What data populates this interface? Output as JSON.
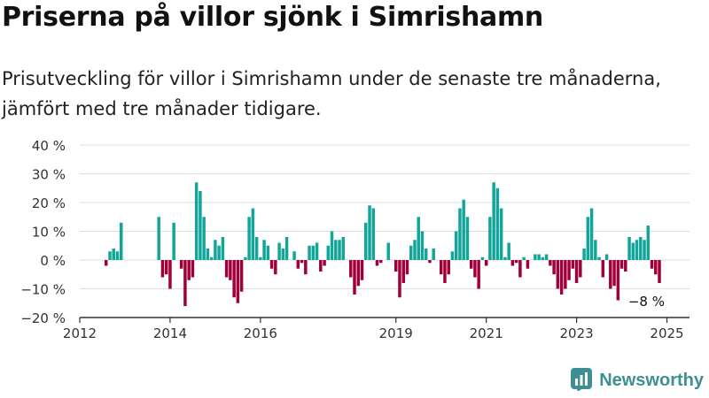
{
  "header": {
    "title": "Priserna på villor sjönk i Simrishamn",
    "subtitle": "Prisutveckling för villor i Simrishamn under de senaste tre månaderna, jämfört med tre månader tidigare."
  },
  "brand": {
    "name": "Newsworthy",
    "icon": "newsworthy-logo-icon"
  },
  "colors": {
    "positive": "#14a59a",
    "negative": "#a0003a",
    "grid": "#dddddd",
    "axis": "#333333",
    "brand": "#3d8f92"
  },
  "chart_data": {
    "type": "bar",
    "title": "Priserna på villor sjönk i Simrishamn",
    "ylim": [
      -20,
      40
    ],
    "yticks": [
      40,
      30,
      20,
      10,
      0,
      -10,
      -20
    ],
    "ytick_labels": [
      "40 %",
      "30 %",
      "20 %",
      "10 %",
      "0 %",
      "−10 %",
      "−20 %"
    ],
    "x_range": [
      2012.0,
      2025.5
    ],
    "xticks": [
      2012,
      2014,
      2016,
      2019,
      2021,
      2023,
      2025
    ],
    "xtick_labels": [
      "2012",
      "2014",
      "2016",
      "2019",
      "2021",
      "2023",
      "2025"
    ],
    "grid": true,
    "annotation": {
      "label": "−8 %",
      "x": 2024.833,
      "y": -8
    },
    "x": [
      2012.583,
      2012.667,
      2012.75,
      2012.833,
      2012.917,
      2013.0,
      2013.083,
      2013.167,
      2013.25,
      2013.333,
      2013.417,
      2013.5,
      2013.583,
      2013.667,
      2013.75,
      2013.833,
      2013.917,
      2014.0,
      2014.083,
      2014.167,
      2014.25,
      2014.333,
      2014.417,
      2014.5,
      2014.583,
      2014.667,
      2014.75,
      2014.833,
      2014.917,
      2015.0,
      2015.083,
      2015.167,
      2015.25,
      2015.333,
      2015.417,
      2015.5,
      2015.583,
      2015.667,
      2015.75,
      2015.833,
      2015.917,
      2016.0,
      2016.083,
      2016.167,
      2016.25,
      2016.333,
      2016.417,
      2016.5,
      2016.583,
      2016.667,
      2016.75,
      2016.833,
      2016.917,
      2017.0,
      2017.083,
      2017.167,
      2017.25,
      2017.333,
      2017.417,
      2017.5,
      2017.583,
      2017.667,
      2017.75,
      2017.833,
      2017.917,
      2018.0,
      2018.083,
      2018.167,
      2018.25,
      2018.333,
      2018.417,
      2018.5,
      2018.583,
      2018.667,
      2018.75,
      2018.833,
      2018.917,
      2019.0,
      2019.083,
      2019.167,
      2019.25,
      2019.333,
      2019.417,
      2019.5,
      2019.583,
      2019.667,
      2019.75,
      2019.833,
      2019.917,
      2020.0,
      2020.083,
      2020.167,
      2020.25,
      2020.333,
      2020.417,
      2020.5,
      2020.583,
      2020.667,
      2020.75,
      2020.833,
      2020.917,
      2021.0,
      2021.083,
      2021.167,
      2021.25,
      2021.333,
      2021.417,
      2021.5,
      2021.583,
      2021.667,
      2021.75,
      2021.833,
      2021.917,
      2022.0,
      2022.083,
      2022.167,
      2022.25,
      2022.333,
      2022.417,
      2022.5,
      2022.583,
      2022.667,
      2022.75,
      2022.833,
      2022.917,
      2023.0,
      2023.083,
      2023.167,
      2023.25,
      2023.333,
      2023.417,
      2023.5,
      2023.583,
      2023.667,
      2023.75,
      2023.833,
      2023.917,
      2024.0,
      2024.083,
      2024.167,
      2024.25,
      2024.333,
      2024.417,
      2024.5,
      2024.583,
      2024.667,
      2024.75,
      2024.833
    ],
    "values": [
      -2,
      3,
      4,
      3,
      13,
      0,
      0,
      0,
      0,
      0,
      0,
      0,
      0,
      0,
      15,
      -6,
      -5,
      -10,
      13,
      0,
      -3,
      -16,
      -7,
      -6,
      27,
      24,
      15,
      4,
      1,
      7,
      5,
      8,
      -6,
      -7,
      -13,
      -15,
      -11,
      1,
      15,
      18,
      8,
      1,
      7,
      5,
      -3,
      -5,
      6,
      4,
      8,
      0,
      3,
      -3,
      -1,
      -5,
      5,
      5,
      6,
      -4,
      -2,
      5,
      10,
      7,
      7,
      8,
      0,
      -6,
      -12,
      -9,
      -7,
      13,
      19,
      18,
      -2,
      -1,
      0,
      6,
      0,
      -4,
      -13,
      -8,
      -5,
      5,
      7,
      15,
      10,
      4,
      -1,
      4,
      0,
      -5,
      -8,
      -5,
      3,
      10,
      18,
      21,
      15,
      -3,
      -6,
      -10,
      1,
      -2,
      15,
      27,
      25,
      18,
      1,
      6,
      -2,
      -1,
      -6,
      1,
      -3,
      0,
      2,
      2,
      1,
      2,
      -2,
      -5,
      -10,
      -12,
      -10,
      -7,
      -3,
      -8,
      -6,
      4,
      15,
      18,
      7,
      1,
      -6,
      2,
      -10,
      -9,
      -14,
      -3,
      -4,
      8,
      6,
      7,
      8,
      7,
      12,
      -3,
      -5,
      -8
    ]
  }
}
